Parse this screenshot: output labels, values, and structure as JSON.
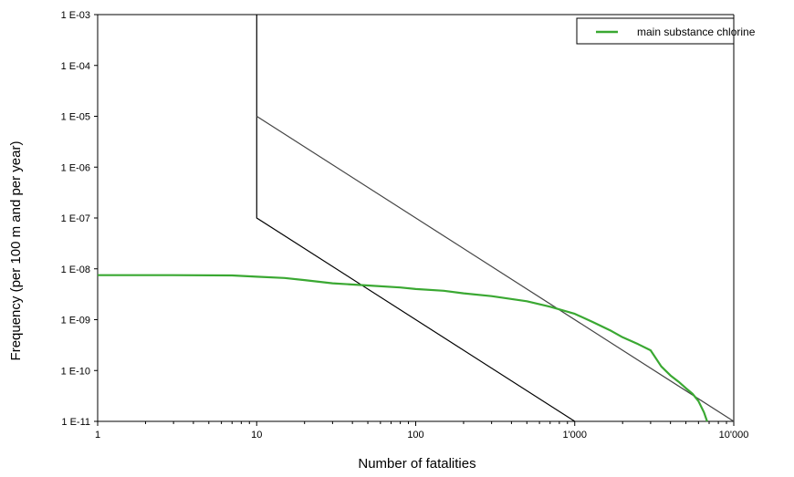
{
  "chart_data": {
    "type": "line",
    "title": "",
    "xlabel": "Number of fatalities",
    "ylabel": "Frequency (per 100 m and per year)",
    "x_scale": "log",
    "y_scale": "log",
    "xlim": [
      1,
      10000
    ],
    "ylim": [
      1e-11,
      0.001
    ],
    "x_ticks": [
      {
        "value": 1,
        "label": "1"
      },
      {
        "value": 10,
        "label": "10"
      },
      {
        "value": 100,
        "label": "100"
      },
      {
        "value": 1000,
        "label": "1'000"
      },
      {
        "value": 10000,
        "label": "10'000"
      }
    ],
    "y_ticks": [
      {
        "value": 0.001,
        "label": "1 E-03"
      },
      {
        "value": 0.0001,
        "label": "1 E-04"
      },
      {
        "value": 1e-05,
        "label": "1 E-05"
      },
      {
        "value": 1e-06,
        "label": "1 E-06"
      },
      {
        "value": 1e-07,
        "label": "1 E-07"
      },
      {
        "value": 1e-08,
        "label": "1 E-08"
      },
      {
        "value": 1e-09,
        "label": "1 E-09"
      },
      {
        "value": 1e-10,
        "label": "1 E-10"
      },
      {
        "value": 1e-11,
        "label": "1 E-11"
      }
    ],
    "grid": false,
    "legend_position": "top-right",
    "criteria_lines": [
      {
        "name": "",
        "color": "#000000",
        "points": [
          [
            10,
            0.001
          ],
          [
            10,
            1e-07
          ],
          [
            1000,
            1e-11
          ]
        ]
      },
      {
        "name": "",
        "color": "#444444",
        "points": [
          [
            10,
            1e-05
          ],
          [
            10000,
            1e-11
          ]
        ]
      }
    ],
    "series": [
      {
        "name": "main substance chlorine",
        "color": "#3aa832",
        "x": [
          1,
          3,
          7,
          10,
          15,
          20,
          30,
          50,
          80,
          100,
          150,
          200,
          300,
          500,
          700,
          1000,
          1300,
          1700,
          2000,
          2500,
          3000,
          3500,
          4000,
          4500,
          5000,
          5500,
          6000,
          6500,
          6800
        ],
        "y": [
          7.5e-09,
          7.5e-09,
          7.4e-09,
          7e-09,
          6.6e-09,
          6e-09,
          5.2e-09,
          4.7e-09,
          4.3e-09,
          4e-09,
          3.7e-09,
          3.3e-09,
          2.9e-09,
          2.3e-09,
          1.8e-09,
          1.3e-09,
          9e-10,
          6e-10,
          4.5e-10,
          3.3e-10,
          2.5e-10,
          1.2e-10,
          8e-11,
          6e-11,
          4.5e-11,
          3.5e-11,
          2.5e-11,
          1.5e-11,
          1e-11
        ]
      }
    ]
  }
}
